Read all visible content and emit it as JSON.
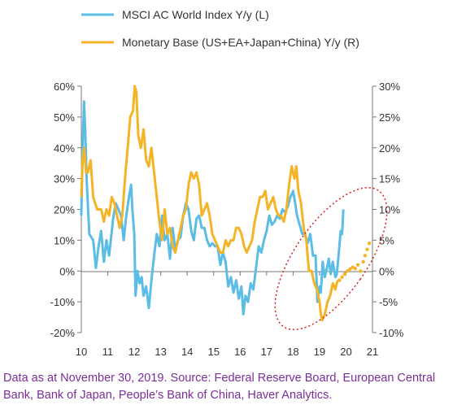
{
  "chart_data": {
    "type": "line",
    "series": [
      {
        "name": "MSCI AC World Index Y/y (L)",
        "axis": "left",
        "color": "#5bbde6",
        "points": [
          [
            2010.0,
            18
          ],
          [
            2010.05,
            40
          ],
          [
            2010.1,
            55
          ],
          [
            2010.15,
            45
          ],
          [
            2010.2,
            30
          ],
          [
            2010.3,
            12
          ],
          [
            2010.45,
            10
          ],
          [
            2010.55,
            1
          ],
          [
            2010.65,
            8
          ],
          [
            2010.75,
            13
          ],
          [
            2010.85,
            3
          ],
          [
            2010.95,
            10
          ],
          [
            2011.05,
            5
          ],
          [
            2011.2,
            17
          ],
          [
            2011.3,
            22
          ],
          [
            2011.4,
            20
          ],
          [
            2011.5,
            18
          ],
          [
            2011.6,
            10
          ],
          [
            2011.7,
            18
          ],
          [
            2011.8,
            24
          ],
          [
            2011.88,
            28
          ],
          [
            2011.93,
            20
          ],
          [
            2012.0,
            12
          ],
          [
            2012.05,
            -8
          ],
          [
            2012.12,
            0
          ],
          [
            2012.2,
            -4
          ],
          [
            2012.28,
            -2
          ],
          [
            2012.35,
            -8
          ],
          [
            2012.45,
            -5
          ],
          [
            2012.55,
            -12
          ],
          [
            2012.65,
            -3
          ],
          [
            2012.75,
            5
          ],
          [
            2012.85,
            12
          ],
          [
            2012.95,
            8
          ],
          [
            2013.05,
            18
          ],
          [
            2013.15,
            10
          ],
          [
            2013.25,
            12
          ],
          [
            2013.35,
            4
          ],
          [
            2013.45,
            14
          ],
          [
            2013.55,
            7
          ],
          [
            2013.65,
            10
          ],
          [
            2013.75,
            11
          ],
          [
            2013.85,
            18
          ],
          [
            2013.95,
            22
          ],
          [
            2014.05,
            20
          ],
          [
            2014.15,
            13
          ],
          [
            2014.25,
            10
          ],
          [
            2014.35,
            17
          ],
          [
            2014.45,
            18
          ],
          [
            2014.55,
            14
          ],
          [
            2014.65,
            14
          ],
          [
            2014.75,
            10
          ],
          [
            2014.85,
            8
          ],
          [
            2014.95,
            9
          ],
          [
            2015.05,
            8
          ],
          [
            2015.15,
            8
          ],
          [
            2015.25,
            2
          ],
          [
            2015.35,
            6
          ],
          [
            2015.45,
            3
          ],
          [
            2015.55,
            -5
          ],
          [
            2015.65,
            -2
          ],
          [
            2015.75,
            -7
          ],
          [
            2015.85,
            -3
          ],
          [
            2015.95,
            -9
          ],
          [
            2016.05,
            -5
          ],
          [
            2016.12,
            -14
          ],
          [
            2016.2,
            -8
          ],
          [
            2016.3,
            -10
          ],
          [
            2016.4,
            -4
          ],
          [
            2016.5,
            -6
          ],
          [
            2016.6,
            1
          ],
          [
            2016.7,
            8
          ],
          [
            2016.8,
            6
          ],
          [
            2016.9,
            10
          ],
          [
            2017.0,
            13
          ],
          [
            2017.1,
            18
          ],
          [
            2017.2,
            15
          ],
          [
            2017.3,
            16
          ],
          [
            2017.4,
            18
          ],
          [
            2017.5,
            17
          ],
          [
            2017.6,
            20
          ],
          [
            2017.7,
            19
          ],
          [
            2017.8,
            21
          ],
          [
            2017.9,
            24
          ],
          [
            2018.0,
            26
          ],
          [
            2018.08,
            22
          ],
          [
            2018.15,
            18
          ],
          [
            2018.25,
            15
          ],
          [
            2018.35,
            12
          ],
          [
            2018.45,
            12
          ],
          [
            2018.55,
            9
          ],
          [
            2018.65,
            12
          ],
          [
            2018.75,
            5
          ],
          [
            2018.85,
            5
          ],
          [
            2018.92,
            -10
          ],
          [
            2019.0,
            -5
          ],
          [
            2019.05,
            -7
          ],
          [
            2019.12,
            3
          ],
          [
            2019.2,
            -2
          ],
          [
            2019.28,
            1
          ],
          [
            2019.35,
            4
          ],
          [
            2019.42,
            -1
          ],
          [
            2019.5,
            3
          ],
          [
            2019.6,
            -2
          ],
          [
            2019.65,
            -1
          ],
          [
            2019.72,
            5
          ],
          [
            2019.8,
            13
          ],
          [
            2019.85,
            12
          ],
          [
            2019.9,
            20
          ]
        ]
      },
      {
        "name": "Monetary Base (US+EA+Japan+China) Y/y (R)",
        "axis": "right",
        "color": "#f5b326",
        "points": [
          [
            2010.0,
            12
          ],
          [
            2010.05,
            18
          ],
          [
            2010.1,
            20
          ],
          [
            2010.18,
            16
          ],
          [
            2010.25,
            16
          ],
          [
            2010.35,
            18
          ],
          [
            2010.45,
            12
          ],
          [
            2010.6,
            10
          ],
          [
            2010.75,
            10
          ],
          [
            2010.85,
            8
          ],
          [
            2010.95,
            10
          ],
          [
            2011.05,
            9
          ],
          [
            2011.15,
            12
          ],
          [
            2011.25,
            11
          ],
          [
            2011.35,
            9
          ],
          [
            2011.45,
            7
          ],
          [
            2011.55,
            9
          ],
          [
            2011.65,
            15
          ],
          [
            2011.75,
            20
          ],
          [
            2011.85,
            25
          ],
          [
            2011.95,
            26
          ],
          [
            2012.02,
            30
          ],
          [
            2012.08,
            29
          ],
          [
            2012.15,
            22
          ],
          [
            2012.25,
            20
          ],
          [
            2012.35,
            23
          ],
          [
            2012.45,
            18
          ],
          [
            2012.55,
            17
          ],
          [
            2012.65,
            20
          ],
          [
            2012.75,
            16
          ],
          [
            2012.85,
            12
          ],
          [
            2012.95,
            8
          ],
          [
            2013.05,
            5
          ],
          [
            2013.15,
            10
          ],
          [
            2013.25,
            6
          ],
          [
            2013.35,
            7
          ],
          [
            2013.45,
            4
          ],
          [
            2013.55,
            3
          ],
          [
            2013.65,
            5
          ],
          [
            2013.75,
            7
          ],
          [
            2013.85,
            9
          ],
          [
            2013.95,
            10
          ],
          [
            2014.05,
            14
          ],
          [
            2014.15,
            16
          ],
          [
            2014.25,
            15
          ],
          [
            2014.35,
            16
          ],
          [
            2014.45,
            14
          ],
          [
            2014.55,
            9
          ],
          [
            2014.65,
            10
          ],
          [
            2014.75,
            11
          ],
          [
            2014.85,
            9
          ],
          [
            2014.95,
            6
          ],
          [
            2015.05,
            5
          ],
          [
            2015.15,
            4
          ],
          [
            2015.25,
            3
          ],
          [
            2015.35,
            3
          ],
          [
            2015.45,
            5
          ],
          [
            2015.55,
            4
          ],
          [
            2015.65,
            5
          ],
          [
            2015.75,
            5
          ],
          [
            2015.85,
            7
          ],
          [
            2015.95,
            7
          ],
          [
            2016.05,
            6
          ],
          [
            2016.15,
            4
          ],
          [
            2016.25,
            3
          ],
          [
            2016.35,
            4
          ],
          [
            2016.45,
            5
          ],
          [
            2016.55,
            8
          ],
          [
            2016.65,
            10
          ],
          [
            2016.75,
            12
          ],
          [
            2016.85,
            12
          ],
          [
            2016.95,
            13
          ],
          [
            2017.05,
            10
          ],
          [
            2017.15,
            11
          ],
          [
            2017.25,
            12
          ],
          [
            2017.35,
            10
          ],
          [
            2017.45,
            9
          ],
          [
            2017.55,
            9
          ],
          [
            2017.65,
            8
          ],
          [
            2017.75,
            10
          ],
          [
            2017.85,
            14
          ],
          [
            2017.95,
            17
          ],
          [
            2018.05,
            15
          ],
          [
            2018.12,
            17
          ],
          [
            2018.2,
            13
          ],
          [
            2018.3,
            11
          ],
          [
            2018.4,
            7
          ],
          [
            2018.5,
            5
          ],
          [
            2018.6,
            0
          ],
          [
            2018.7,
            0
          ],
          [
            2018.8,
            -2
          ],
          [
            2018.9,
            -3
          ],
          [
            2019.0,
            -5
          ],
          [
            2019.05,
            -7
          ],
          [
            2019.1,
            -8
          ],
          [
            2019.2,
            -7
          ],
          [
            2019.3,
            -5
          ],
          [
            2019.4,
            -4
          ],
          [
            2019.5,
            -2
          ],
          [
            2019.6,
            -3
          ],
          [
            2019.65,
            -2
          ],
          [
            2019.7,
            -1.5
          ]
        ]
      }
    ],
    "projection": {
      "color": "#f5b326",
      "points": [
        [
          2019.75,
          -1.5
        ],
        [
          2019.85,
          -1
        ],
        [
          2019.95,
          -0.5
        ],
        [
          2020.05,
          0
        ],
        [
          2020.15,
          0.3
        ],
        [
          2020.25,
          0.6
        ],
        [
          2020.35,
          0.4
        ],
        [
          2020.45,
          1
        ],
        [
          2020.55,
          0
        ],
        [
          2020.65,
          1.5
        ],
        [
          2020.72,
          2.5
        ],
        [
          2020.8,
          3.5
        ],
        [
          2020.88,
          4.5
        ]
      ]
    },
    "x_ticks": [
      "10",
      "11",
      "12",
      "13",
      "14",
      "15",
      "16",
      "17",
      "18",
      "19",
      "20",
      "21"
    ],
    "left_ticks": [
      "60%",
      "50%",
      "40%",
      "30%",
      "20%",
      "10%",
      "0%",
      "-10%",
      "-20%"
    ],
    "right_ticks": [
      "30%",
      "25%",
      "20%",
      "15%",
      "10%",
      "5%",
      "0%",
      "-5%",
      "-10%"
    ],
    "xlim": [
      2010,
      2021
    ],
    "ylim_left": [
      -20,
      60
    ],
    "ylim_right": [
      -10,
      30
    ],
    "highlight_color": "#d81f26",
    "title": "",
    "xlabel": "",
    "ylabel": ""
  },
  "source_note": "Data as at November 30, 2019. Source: Federal Reserve Board, European Central Bank, Bank of Japan, People’s Bank of China, Haver Analytics."
}
